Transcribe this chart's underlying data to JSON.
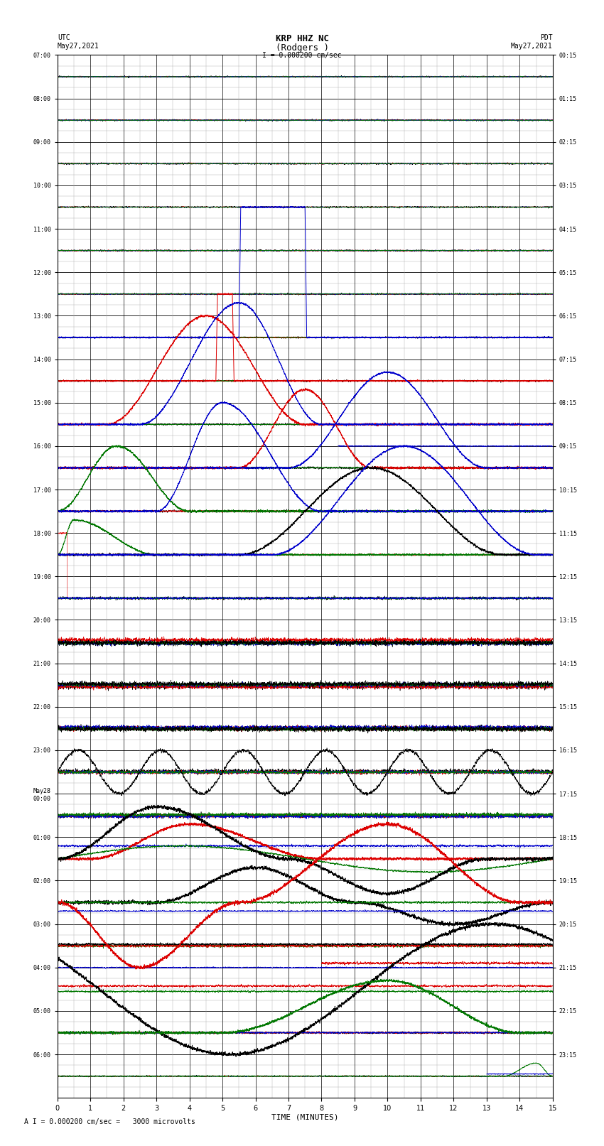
{
  "title_line1": "KRP HHZ NC",
  "title_line2": "(Rodgers )",
  "scale_label": "I = 0.000200 cm/sec",
  "footer_label": "A I = 0.000200 cm/sec =   3000 microvolts",
  "utc_label": "UTC",
  "utc_date": "May27,2021",
  "pdt_label": "PDT",
  "pdt_date": "May27,2021",
  "xlabel": "TIME (MINUTES)",
  "left_times": [
    "07:00",
    "08:00",
    "09:00",
    "10:00",
    "11:00",
    "12:00",
    "13:00",
    "14:00",
    "15:00",
    "16:00",
    "17:00",
    "18:00",
    "19:00",
    "20:00",
    "21:00",
    "22:00",
    "23:00",
    "May28\n00:00",
    "01:00",
    "02:00",
    "03:00",
    "04:00",
    "05:00",
    "06:00"
  ],
  "right_times": [
    "00:15",
    "01:15",
    "02:15",
    "03:15",
    "04:15",
    "05:15",
    "06:15",
    "07:15",
    "08:15",
    "09:15",
    "10:15",
    "11:15",
    "12:15",
    "13:15",
    "14:15",
    "15:15",
    "16:15",
    "17:15",
    "18:15",
    "19:15",
    "20:15",
    "21:15",
    "22:15",
    "23:15"
  ],
  "n_rows": 24,
  "background_color": "#ffffff",
  "grid_major_color": "#000000",
  "grid_minor_color": "#aaaaaa",
  "colors": {
    "black": "#000000",
    "red": "#dd0000",
    "blue": "#0000cc",
    "green": "#007700"
  },
  "figsize": [
    8.5,
    16.13
  ],
  "dpi": 100
}
